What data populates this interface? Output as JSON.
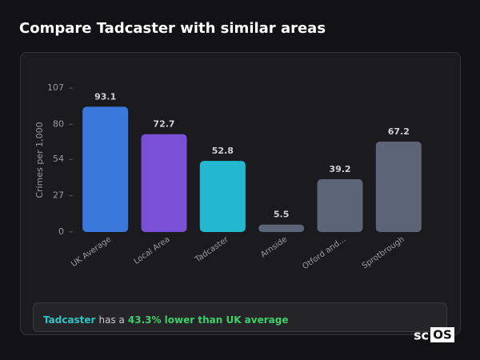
{
  "chart_data": {
    "type": "bar",
    "title": "Compare Tadcaster with similar areas",
    "y_label": "Crimes per 1,000",
    "categories": [
      "UK Average",
      "Local Area",
      "Tadcaster",
      "Arnside",
      "Otford and...",
      "Sprotbrough"
    ],
    "values": [
      93.1,
      72.7,
      52.8,
      5.5,
      39.2,
      67.2
    ],
    "colors": [
      "#3a78dc",
      "#7b4fd6",
      "#21b8d0",
      "#5b6577",
      "#5b6577",
      "#5b6577"
    ],
    "ylim": [
      0,
      107
    ],
    "yticks": [
      0,
      27,
      54,
      80,
      107
    ],
    "grid": false
  },
  "summary": {
    "area": "Tadcaster",
    "text": "has a",
    "highlight": "43.3% lower than UK average"
  },
  "brand": {
    "prefix": "sc",
    "boxed": "OS"
  }
}
